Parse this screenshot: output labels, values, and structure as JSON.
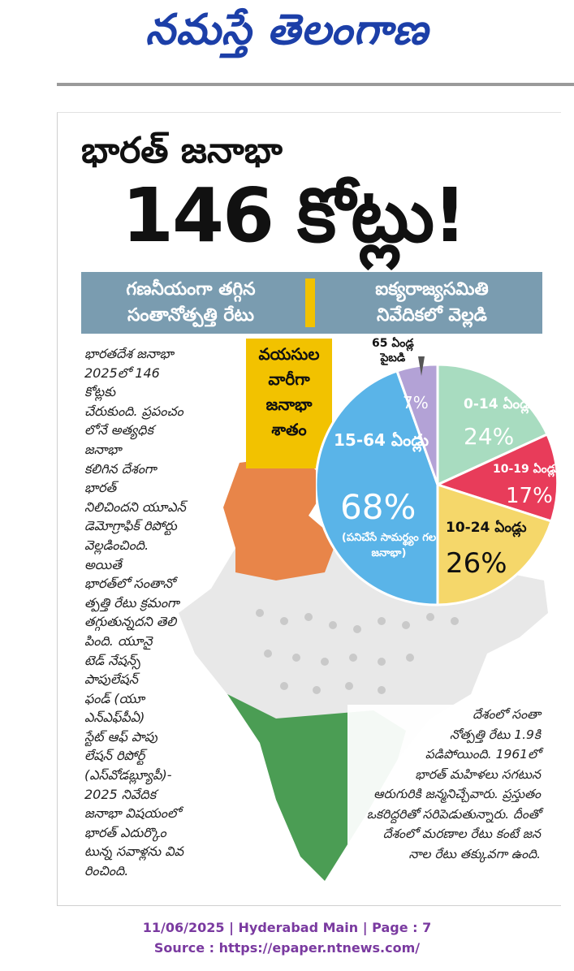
{
  "masthead": {
    "title": "నమస్తే తెలంగాణ"
  },
  "headline": {
    "line1": "భారత్ జనాభా",
    "line2": "146 కోట్లు!"
  },
  "banner": {
    "left": "గణనీయంగా తగ్గిన\nసంతానోత్పత్తి రేటు",
    "right": "ఐక్యరాజ్యసమితి\nనివేదికలో వెల్లడి"
  },
  "body_left": "భారతదేశ జనాభా\n2025లో 146 కోట్లకు\nచేరుకుంది. ప్రపంచం\nలోనే అత్యధిక జనాభా\nకలిగిన దేశంగా భారత్\nనిలిచిందని యూఎన్\nడెమోగ్రాఫిక్ రిపోర్టు\nవెల్లడించింది. అయితే\nభారత్‌లో సంతానో\nత్పత్తి రేటు క్రమంగా\nతగ్గుతున్నదని తెలి\nపింది. యూనై\nటెడ్ నేషన్స్\nపాపులేషన్\nఫండ్ (యూ\nఎన్‌ఎఫ్‌పీఏ)\nస్టేట్ ఆఫ్ పాపు\nలేషన్ రిపోర్ట్\n(ఎస్‌వోడబ్ల్యూపీ)-\n2025 నివేదిక\nజనాభా విషయంలో\nభారత్ ఎదుర్కొం\nటున్న సవాళ్లను వివ\nరించింది.",
  "legend_box": "వయసుల\nవారీగా\nజనాభా\nశాతం",
  "chart_data": {
    "type": "pie",
    "title": "వయసుల వారీగా జనాభా శాతం",
    "slices": [
      {
        "label": "0-14 ఏండ్లు",
        "value": 24,
        "display": "24%",
        "color": "#a8dcc0"
      },
      {
        "label": "10-19 ఏండ్లు",
        "value": 17,
        "display": "17%",
        "color": "#e83c5a"
      },
      {
        "label": "10-24 ఏండ్లు",
        "value": 26,
        "display": "26%",
        "color": "#f5d76a"
      },
      {
        "label": "15-64 ఏండ్లు",
        "value": 68,
        "display": "68%",
        "note": "(పనిచేసే సామర్థ్యం గల జనాభా)",
        "color": "#5ab4e8"
      },
      {
        "label": "65 ఏండ్ల పైబడి",
        "value": 7,
        "display": "7%",
        "color": "#b3a2d6"
      }
    ]
  },
  "label_65": "65 ఏండ్ల\nపైబడి",
  "body_right": "దేశంలో సంతా\nనోత్పత్తి రేటు 1.9కి\nపడిపోయింది. 1961లో\nభారత్ మహిళలు సగటున\nఆరుగురికి జన్మనిచ్చేవారు. ప్రస్తుతం\nఒకరిద్దరితో సరిపెడుతున్నారు. దీంతో\nదేశంలో మరణాల రేటు కంటే జన\nనాల రేటు తక్కువగా ఉంది.",
  "footer": {
    "line1": "11/06/2025 | Hyderabad Main | Page : 7",
    "line2": "Source : https://epaper.ntnews.com/"
  }
}
